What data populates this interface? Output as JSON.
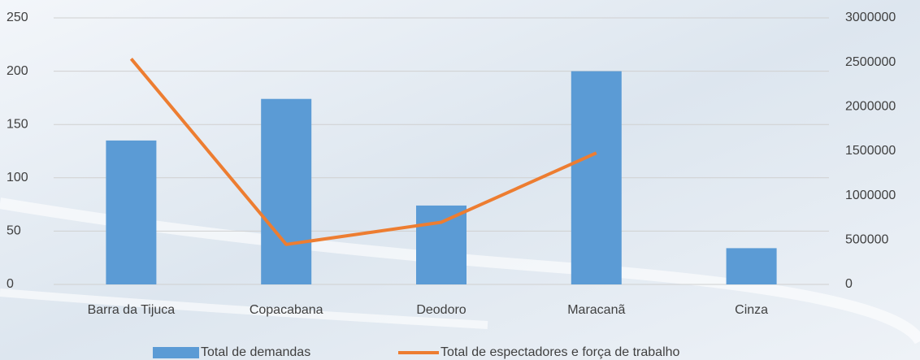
{
  "chart_data": {
    "type": "bar",
    "categories": [
      "Barra da Tijuca",
      "Copacabana",
      "Deodoro",
      "Maracanã",
      "Cinza"
    ],
    "series": [
      {
        "name": "Total de demandas",
        "type": "bar",
        "color": "#5b9bd5",
        "values": [
          135,
          174,
          74,
          200,
          34
        ]
      },
      {
        "name": "Total de espectadores e força de trabalho",
        "type": "line",
        "axis": "y2",
        "color": "#ed7d31",
        "values": [
          2540000,
          450000,
          700000,
          1480000,
          null
        ]
      }
    ],
    "ylim": [
      0,
      250
    ],
    "yticks": [
      0,
      50,
      100,
      150,
      200,
      250
    ],
    "y2lim": [
      0,
      3000000
    ],
    "y2ticks": [
      0,
      500000,
      1000000,
      1500000,
      2000000,
      2500000,
      3000000
    ],
    "grid": true,
    "legend": "bottom"
  }
}
